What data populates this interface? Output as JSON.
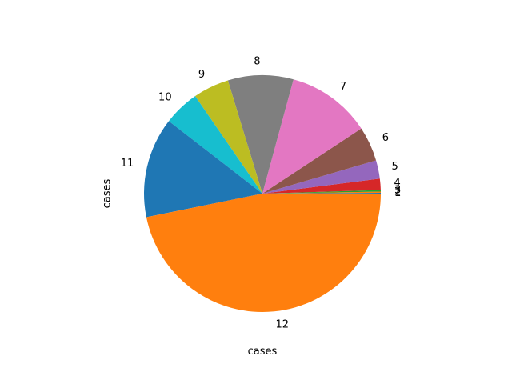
{
  "chart_data": {
    "type": "pie",
    "categories": [
      "1",
      "2",
      "3",
      "4",
      "5",
      "6",
      "7",
      "8",
      "9",
      "10",
      "11",
      "12"
    ],
    "values": [
      0.2,
      0.3,
      0.4,
      2.9,
      4.7,
      8.9,
      21.6,
      16.8,
      9.2,
      9.2,
      25.7,
      87.9
    ],
    "colors": [
      "#1f77b4",
      "#ff7f0e",
      "#2ca02c",
      "#d62728",
      "#9467bd",
      "#8c564b",
      "#e377c2",
      "#7f7f7f",
      "#bcbd22",
      "#17becf",
      "#1f77b4",
      "#ff7f0e"
    ],
    "ylabel": "cases",
    "xlabel": "cases",
    "start_angle_deg": 0,
    "direction": "counterclockwise"
  }
}
